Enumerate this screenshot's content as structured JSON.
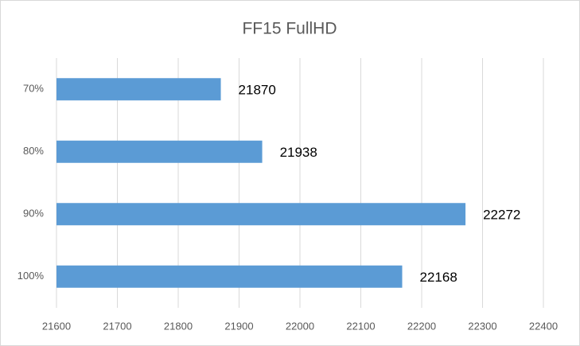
{
  "chart_data": {
    "type": "barh",
    "title": "FF15 FullHD",
    "categories": [
      "70%",
      "80%",
      "90%",
      "100%"
    ],
    "values": [
      21870,
      21938,
      22272,
      22168
    ],
    "color": "#5b9bd5",
    "xlim": [
      21600,
      22400
    ],
    "xticks": [
      21600,
      21700,
      21800,
      21900,
      22000,
      22100,
      22200,
      22300,
      22400
    ],
    "grid": true
  }
}
